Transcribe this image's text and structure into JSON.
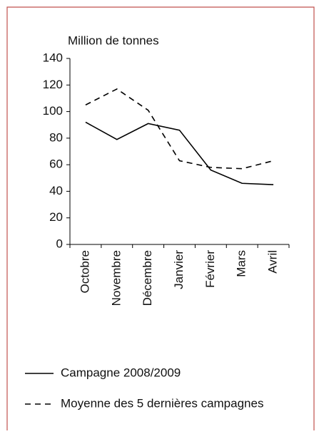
{
  "chart_data": {
    "type": "line",
    "y_label": "Million de tonnes",
    "categories": [
      "Octobre",
      "Novembre",
      "Décembre",
      "Janvier",
      "Février",
      "Mars",
      "Avril"
    ],
    "series": [
      {
        "name": "Campagne 2008/2009",
        "color": "#000000",
        "dash": "none",
        "values": [
          92,
          79,
          91,
          86,
          56,
          46,
          45
        ]
      },
      {
        "name": "Moyenne des 5 dernières campagnes",
        "color": "#000000",
        "dash": "8,6",
        "values": [
          105,
          117,
          101,
          63,
          58,
          57,
          63
        ]
      }
    ],
    "ylim": [
      0,
      140
    ],
    "yticks": [
      0,
      20,
      40,
      60,
      80,
      100,
      120,
      140
    ]
  }
}
